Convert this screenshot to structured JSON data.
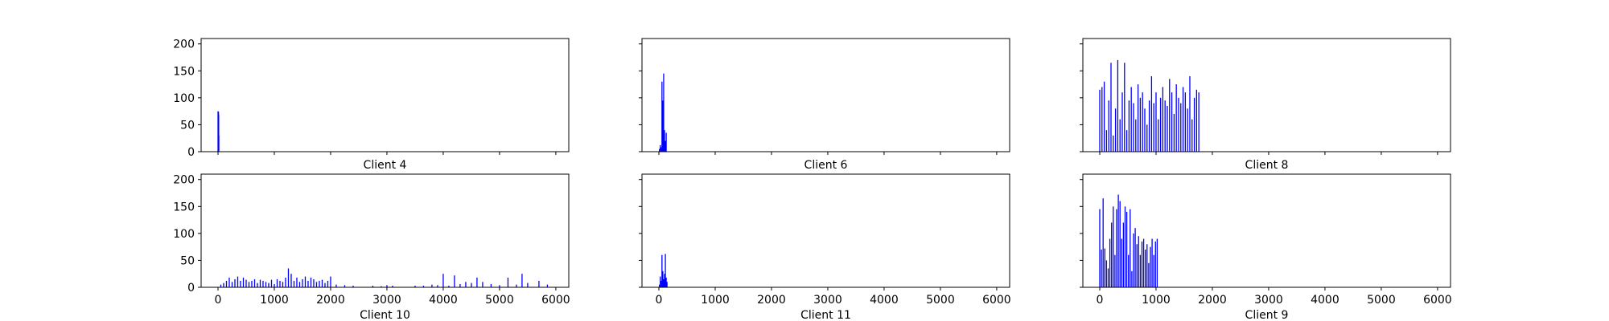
{
  "figure": {
    "colors": {
      "bar": "#0000ff",
      "axes": "#000000",
      "text": "#000000",
      "background": "#ffffff"
    }
  },
  "chart_data": [
    {
      "type": "bar",
      "title": "Client 4",
      "xlabel": "Client 4",
      "ylabel": "",
      "xlim": [
        -300,
        6230
      ],
      "ylim": [
        0,
        210
      ],
      "xticks": [
        0,
        1000,
        2000,
        3000,
        4000,
        5000,
        6000
      ],
      "show_xtick_labels": false,
      "yticks": [
        0,
        50,
        100,
        150,
        200
      ],
      "show_ytick_labels": true,
      "x": [
        0,
        3,
        6,
        9,
        12,
        15
      ],
      "values": [
        75,
        72,
        70,
        74,
        68,
        30
      ]
    },
    {
      "type": "bar",
      "title": "Client 6",
      "xlabel": "Client 6",
      "ylabel": "",
      "xlim": [
        -300,
        6230
      ],
      "ylim": [
        0,
        210
      ],
      "xticks": [
        0,
        1000,
        2000,
        3000,
        4000,
        5000,
        6000
      ],
      "show_xtick_labels": false,
      "yticks": [
        0,
        50,
        100,
        150,
        200
      ],
      "show_ytick_labels": false,
      "x": [
        10,
        25,
        40,
        55,
        70,
        85,
        100,
        115,
        130
      ],
      "values": [
        5,
        12,
        8,
        130,
        95,
        145,
        40,
        20,
        35
      ]
    },
    {
      "type": "bar",
      "title": "Client 8",
      "xlabel": "Client 8",
      "ylabel": "",
      "xlim": [
        -300,
        6230
      ],
      "ylim": [
        0,
        210
      ],
      "xticks": [
        0,
        1000,
        2000,
        3000,
        4000,
        5000,
        6000
      ],
      "show_xtick_labels": false,
      "yticks": [
        0,
        50,
        100,
        150,
        200
      ],
      "show_ytick_labels": false,
      "x": [
        0,
        40,
        80,
        120,
        160,
        200,
        240,
        280,
        320,
        360,
        400,
        440,
        480,
        520,
        560,
        600,
        640,
        680,
        720,
        760,
        800,
        840,
        880,
        920,
        960,
        1000,
        1040,
        1080,
        1120,
        1160,
        1200,
        1240,
        1280,
        1320,
        1360,
        1400,
        1440,
        1480,
        1520,
        1560,
        1600,
        1640,
        1680,
        1720,
        1760
      ],
      "values": [
        115,
        120,
        130,
        40,
        95,
        165,
        30,
        80,
        170,
        60,
        110,
        165,
        40,
        95,
        120,
        90,
        60,
        125,
        100,
        110,
        80,
        50,
        95,
        140,
        90,
        110,
        60,
        100,
        120,
        95,
        85,
        135,
        110,
        70,
        125,
        100,
        90,
        120,
        110,
        80,
        140,
        60,
        100,
        115,
        110
      ]
    },
    {
      "type": "bar",
      "title": "Client 10",
      "xlabel": "Client 10",
      "ylabel": "",
      "xlim": [
        -300,
        6230
      ],
      "ylim": [
        0,
        210
      ],
      "xticks": [
        0,
        1000,
        2000,
        3000,
        4000,
        5000,
        6000
      ],
      "show_xtick_labels": true,
      "yticks": [
        0,
        50,
        100,
        150,
        200
      ],
      "show_ytick_labels": true,
      "x": [
        50,
        100,
        150,
        200,
        250,
        300,
        350,
        400,
        450,
        500,
        550,
        600,
        650,
        700,
        750,
        800,
        850,
        900,
        950,
        1000,
        1050,
        1100,
        1150,
        1200,
        1250,
        1300,
        1350,
        1400,
        1450,
        1500,
        1550,
        1600,
        1650,
        1700,
        1750,
        1800,
        1850,
        1900,
        1950,
        2000,
        2100,
        2250,
        2400,
        2750,
        2900,
        3000,
        3100,
        3500,
        3650,
        3800,
        3900,
        4000,
        4100,
        4200,
        4300,
        4400,
        4500,
        4600,
        4700,
        4850,
        5000,
        5150,
        5300,
        5400,
        5500,
        5700,
        5850
      ],
      "values": [
        5,
        8,
        12,
        18,
        10,
        15,
        20,
        12,
        18,
        14,
        10,
        12,
        15,
        8,
        14,
        12,
        10,
        8,
        14,
        6,
        15,
        12,
        10,
        18,
        35,
        25,
        12,
        18,
        10,
        15,
        20,
        12,
        18,
        15,
        10,
        12,
        14,
        8,
        12,
        20,
        5,
        4,
        3,
        3,
        2,
        4,
        3,
        3,
        3,
        5,
        4,
        25,
        3,
        22,
        6,
        10,
        8,
        18,
        10,
        6,
        4,
        18,
        5,
        25,
        8,
        12,
        5
      ]
    },
    {
      "type": "bar",
      "title": "Client 11",
      "xlabel": "Client 11",
      "ylabel": "",
      "xlim": [
        -300,
        6230
      ],
      "ylim": [
        0,
        210
      ],
      "xticks": [
        0,
        1000,
        2000,
        3000,
        4000,
        5000,
        6000
      ],
      "show_xtick_labels": true,
      "yticks": [
        0,
        50,
        100,
        150,
        200
      ],
      "show_ytick_labels": false,
      "x": [
        10,
        25,
        40,
        55,
        70,
        85,
        100,
        115,
        130,
        145
      ],
      "values": [
        5,
        20,
        12,
        60,
        30,
        15,
        25,
        62,
        18,
        10
      ]
    },
    {
      "type": "bar",
      "title": "Client 9",
      "xlabel": "Client 9",
      "ylabel": "",
      "xlim": [
        -300,
        6230
      ],
      "ylim": [
        0,
        210
      ],
      "xticks": [
        0,
        1000,
        2000,
        3000,
        4000,
        5000,
        6000
      ],
      "show_xtick_labels": true,
      "yticks": [
        0,
        50,
        100,
        150,
        200
      ],
      "show_ytick_labels": false,
      "x": [
        0,
        30,
        60,
        90,
        120,
        150,
        180,
        210,
        240,
        270,
        300,
        330,
        360,
        390,
        420,
        450,
        480,
        510,
        540,
        570,
        600,
        630,
        660,
        690,
        720,
        750,
        780,
        810,
        840,
        870,
        900,
        930,
        960,
        990,
        1020
      ],
      "values": [
        145,
        70,
        165,
        72,
        50,
        35,
        90,
        120,
        150,
        60,
        145,
        172,
        160,
        90,
        120,
        150,
        140,
        60,
        145,
        30,
        100,
        110,
        80,
        95,
        60,
        85,
        90,
        70,
        80,
        45,
        75,
        90,
        60,
        85,
        90
      ]
    }
  ]
}
